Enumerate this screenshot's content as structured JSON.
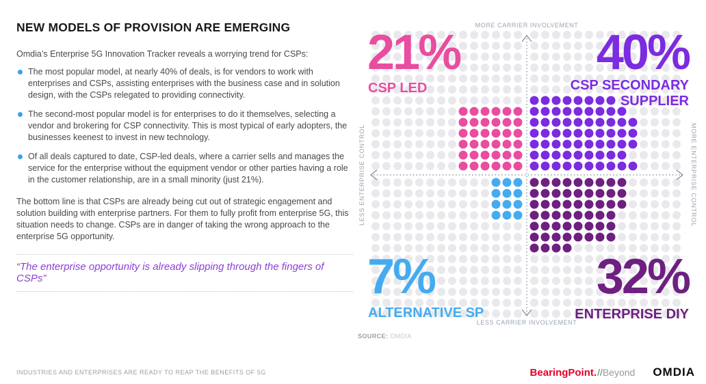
{
  "left_panel": {
    "title": "NEW MODELS OF PROVISION ARE EMERGING",
    "intro": "Omdia’s Enterprise 5G Innovation Tracker reveals a worrying trend for CSPs:",
    "bullets": [
      "The most popular model, at nearly 40% of deals, is for vendors to work with enterprises and CSPs, assisting enterprises with the business case and in solution design, with the CSPs relegated to providing connectivity.",
      "The second-most popular model is for enterprises to do it themselves, selecting a vendor and brokering for CSP connectivity. This is most typical of early adopters, the businesses keenest to invest in new technology.",
      "Of all deals captured to date, CSP-led deals, where a carrier sells and manages the service for the enterprise without the equipment vendor or other parties having a role in the customer relationship, are in a small minority (just 21%)."
    ],
    "bottom_line": "The bottom line is that CSPs are already being cut out of strategic engagement and solution building with enterprise partners. For them to fully profit from enterprise 5G, this situation needs to change. CSPs are in danger of taking the wrong approach to the enterprise 5G opportunity.",
    "quote": "“The enterprise opportunity is already slipping through the fingers of CSPs”"
  },
  "chart_data": {
    "type": "quadrant-dot-matrix",
    "title": "Share of enterprise 5G deals by provision model",
    "axes": {
      "top": "MORE CARRIER INVOLVEMENT",
      "bottom": "LESS CARRIER INVOLVEMENT",
      "left": "LESS ENTERPRISE CONTROL",
      "right": "MORE ENTERPRISE CONTROL"
    },
    "quadrants": [
      {
        "position": "top-left",
        "value_pct": 21,
        "value_label": "21%",
        "label": "CSP LED",
        "color": "#e94d9f",
        "dot_rows_from_axis": [
          6,
          6,
          6,
          6,
          6,
          6
        ]
      },
      {
        "position": "top-right",
        "value_pct": 40,
        "value_label": "40%",
        "label": "CSP SECONDARY SUPPLIER",
        "color": "#7b2be0",
        "dot_rows_from_axis": [
          10,
          9,
          10,
          10,
          10,
          9,
          8
        ]
      },
      {
        "position": "bottom-left",
        "value_pct": 7,
        "value_label": "7%",
        "label": "ALTERNATIVE SP",
        "color": "#45abf0",
        "dot_rows_from_axis": [
          3,
          3,
          3,
          3
        ]
      },
      {
        "position": "bottom-right",
        "value_pct": 32,
        "value_label": "32%",
        "label": "ENTERPRISE DIY",
        "color": "#6d2080",
        "dot_rows_from_axis": [
          9,
          9,
          9,
          8,
          8,
          8,
          4
        ]
      }
    ],
    "grid_dot_color": "#e9e9ed",
    "axis_color": "#7c8794",
    "legend_position": "none",
    "source_label": "SOURCE:",
    "source_value": "OMDIA"
  },
  "colors": {
    "pink": "#e94d9f",
    "purple": "#7b2be0",
    "blue": "#45abf0",
    "dark_purple": "#6d2080",
    "bullet_blue": "#38a2e8",
    "quote_purple": "#8b3fd6",
    "grid_dot": "#e9e9ed",
    "axis": "#7c8794",
    "axis_text": "#9aa3b2",
    "bearingpoint_red": "#e5002b"
  },
  "footer": {
    "tagline": "INDUSTRIES AND ENTERPRISES ARE READY TO REAP THE BENEFITS OF 5G",
    "bearingpoint": "BearingPoint.",
    "beyond_slashes": "//",
    "beyond": "Beyond",
    "omdia": "OMDIA"
  }
}
